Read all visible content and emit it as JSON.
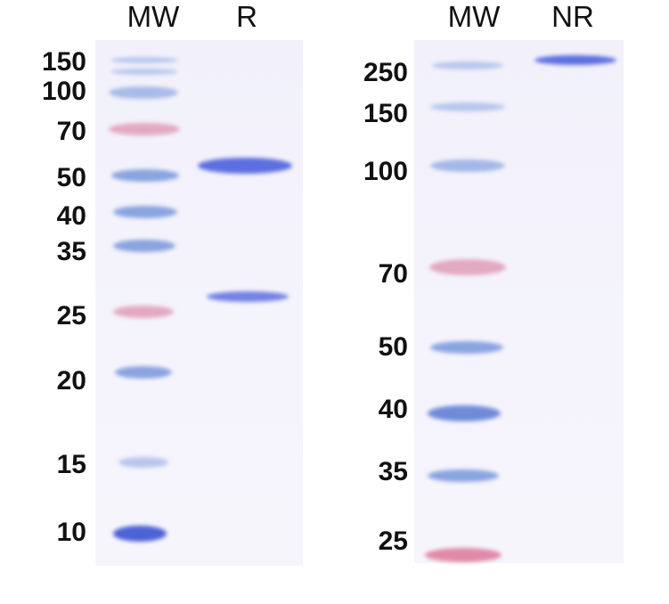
{
  "left_gel": {
    "headers": [
      "MW",
      "R"
    ],
    "marker_labels": [
      "150",
      "100",
      "70",
      "50",
      "40",
      "35",
      "25",
      "20",
      "15",
      "10"
    ],
    "colors": {
      "marker_band": "#8aa4e0",
      "prestained_band": "#e2a9c0",
      "sample_band": "#5d6fe0"
    }
  },
  "right_gel": {
    "headers": [
      "MW",
      "NR"
    ],
    "marker_labels": [
      "250",
      "150",
      "100",
      "70",
      "50",
      "40",
      "35",
      "25"
    ]
  }
}
